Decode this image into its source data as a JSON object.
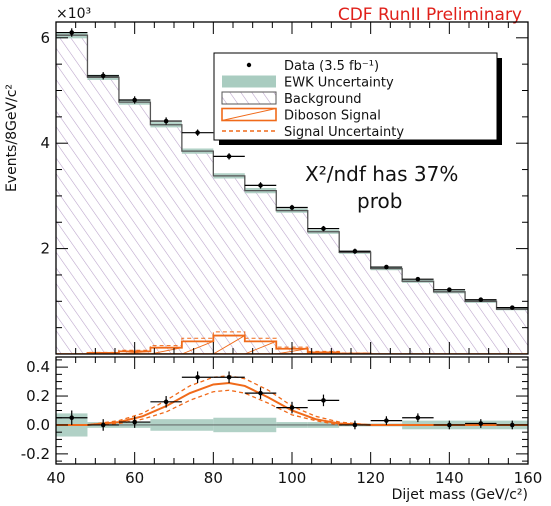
{
  "header": {
    "experiment_label": "CDF RunII Preliminary",
    "exponent_label": "×10³",
    "annotation_line1": "X²/ndf has 37%",
    "annotation_line2": "prob"
  },
  "colors": {
    "signal": "#f06a1a",
    "signal_uncertainty": "#f06a1a",
    "background_hatch": "#b8a0c8",
    "background_outline": "#555555",
    "ewk_band": "#a9ccc0",
    "data": "#000000",
    "title": "#e0201a"
  },
  "chart_data": [
    {
      "type": "histogram",
      "panel": "main",
      "ylabel": "Events/8GeV/c²",
      "y_scale_factor": 1000,
      "xlim": [
        40,
        160
      ],
      "ylim": [
        0,
        6.3
      ],
      "yticks": [
        2,
        4,
        6
      ],
      "ytick_labels": [
        "2",
        "4",
        "6"
      ],
      "bin_edges": [
        40,
        48,
        56,
        64,
        72,
        80,
        88,
        96,
        104,
        112,
        120,
        128,
        136,
        144,
        152,
        160
      ],
      "background": [
        6.05,
        5.25,
        4.78,
        4.35,
        3.85,
        3.38,
        3.1,
        2.72,
        2.32,
        1.93,
        1.62,
        1.38,
        1.18,
        1.0,
        0.85
      ],
      "ewk_uncertainty_halfwidth": [
        0.06,
        0.05,
        0.05,
        0.05,
        0.05,
        0.05,
        0.05,
        0.04,
        0.04,
        0.03,
        0.03,
        0.03,
        0.03,
        0.03,
        0.02
      ],
      "diboson_signal": [
        0.0,
        0.02,
        0.05,
        0.12,
        0.24,
        0.35,
        0.24,
        0.1,
        0.03,
        0.01,
        0.0,
        0.0,
        0.0,
        0.0,
        0.0
      ],
      "signal_uncertainty_high": [
        0.0,
        0.03,
        0.07,
        0.16,
        0.3,
        0.42,
        0.3,
        0.13,
        0.05,
        0.02,
        0.0,
        0.0,
        0.0,
        0.0,
        0.0
      ],
      "signal_uncertainty_low": [
        0.0,
        0.01,
        0.03,
        0.08,
        0.18,
        0.28,
        0.18,
        0.07,
        0.02,
        0.005,
        0.0,
        0.0,
        0.0,
        0.0,
        0.0
      ],
      "data": {
        "x": [
          44,
          52,
          60,
          68,
          76,
          84,
          92,
          100,
          108,
          116,
          124,
          132,
          140,
          148,
          156
        ],
        "y": [
          6.1,
          5.28,
          4.82,
          4.42,
          4.2,
          3.75,
          3.2,
          2.78,
          2.38,
          1.95,
          1.65,
          1.42,
          1.22,
          1.03,
          0.88
        ],
        "yerr": [
          0.08,
          0.07,
          0.07,
          0.07,
          0.06,
          0.06,
          0.06,
          0.05,
          0.05,
          0.05,
          0.04,
          0.04,
          0.04,
          0.03,
          0.03
        ],
        "xerr": 4
      },
      "legend": {
        "position": "top-right",
        "entries": [
          {
            "label": "Data (3.5 fb⁻¹)",
            "kind": "data"
          },
          {
            "label": "EWK Uncertainty",
            "kind": "band"
          },
          {
            "label": "Background",
            "kind": "hatch"
          },
          {
            "label": "Diboson Signal",
            "kind": "signal"
          },
          {
            "label": "Signal Uncertainty",
            "kind": "dashed"
          }
        ]
      }
    },
    {
      "type": "residual",
      "panel": "ratio",
      "xlabel": "Dijet mass (GeV/c²)",
      "xlim": [
        40,
        160
      ],
      "ylim": [
        -0.27,
        0.47
      ],
      "xticks": [
        40,
        60,
        80,
        100,
        120,
        140,
        160
      ],
      "xtick_labels": [
        "40",
        "60",
        "80",
        "100",
        "120",
        "140",
        "160"
      ],
      "yticks": [
        -0.2,
        0.0,
        0.2,
        0.4
      ],
      "ytick_labels": [
        "-0.2",
        "0.0",
        "0.2",
        "0.4"
      ],
      "band_edges": [
        40,
        48,
        64,
        80,
        96,
        104,
        112,
        120,
        128,
        152,
        160
      ],
      "band_halfwidth": [
        0.08,
        0.02,
        0.04,
        0.05,
        0.02,
        0.02,
        0.01,
        0.01,
        0.03,
        0.03
      ],
      "signal_curve": {
        "x": [
          40,
          48,
          56,
          62,
          68,
          74,
          80,
          84,
          88,
          94,
          100,
          106,
          112,
          120,
          130,
          140,
          150,
          160
        ],
        "y": [
          0.0,
          0.0,
          0.02,
          0.06,
          0.13,
          0.22,
          0.28,
          0.29,
          0.27,
          0.19,
          0.1,
          0.04,
          0.01,
          0.0,
          0.0,
          0.0,
          0.0,
          0.0
        ]
      },
      "signal_curve_high": {
        "x": [
          40,
          48,
          56,
          62,
          68,
          74,
          80,
          84,
          88,
          94,
          100,
          106,
          112,
          120,
          130,
          140,
          150,
          160
        ],
        "y": [
          0.0,
          0.0,
          0.03,
          0.08,
          0.17,
          0.27,
          0.33,
          0.34,
          0.32,
          0.24,
          0.13,
          0.06,
          0.02,
          0.0,
          0.0,
          0.0,
          0.0,
          0.0
        ]
      },
      "signal_curve_low": {
        "x": [
          40,
          48,
          56,
          62,
          68,
          74,
          80,
          84,
          88,
          94,
          100,
          106,
          112,
          120,
          130,
          140,
          150,
          160
        ],
        "y": [
          0.0,
          0.0,
          0.01,
          0.04,
          0.09,
          0.17,
          0.23,
          0.24,
          0.22,
          0.15,
          0.07,
          0.03,
          0.0,
          0.0,
          0.0,
          0.0,
          0.0,
          0.0
        ]
      },
      "data": {
        "x": [
          44,
          52,
          60,
          68,
          76,
          84,
          92,
          100,
          108,
          116,
          124,
          132,
          140,
          148,
          156
        ],
        "y": [
          0.05,
          0.0,
          0.02,
          0.16,
          0.33,
          0.33,
          0.22,
          0.12,
          0.17,
          0.0,
          0.03,
          0.05,
          0.0,
          0.01,
          0.0
        ],
        "yerr": [
          0.05,
          0.04,
          0.04,
          0.04,
          0.04,
          0.04,
          0.04,
          0.04,
          0.04,
          0.03,
          0.03,
          0.03,
          0.03,
          0.03,
          0.03
        ],
        "xerr": 4
      }
    }
  ]
}
